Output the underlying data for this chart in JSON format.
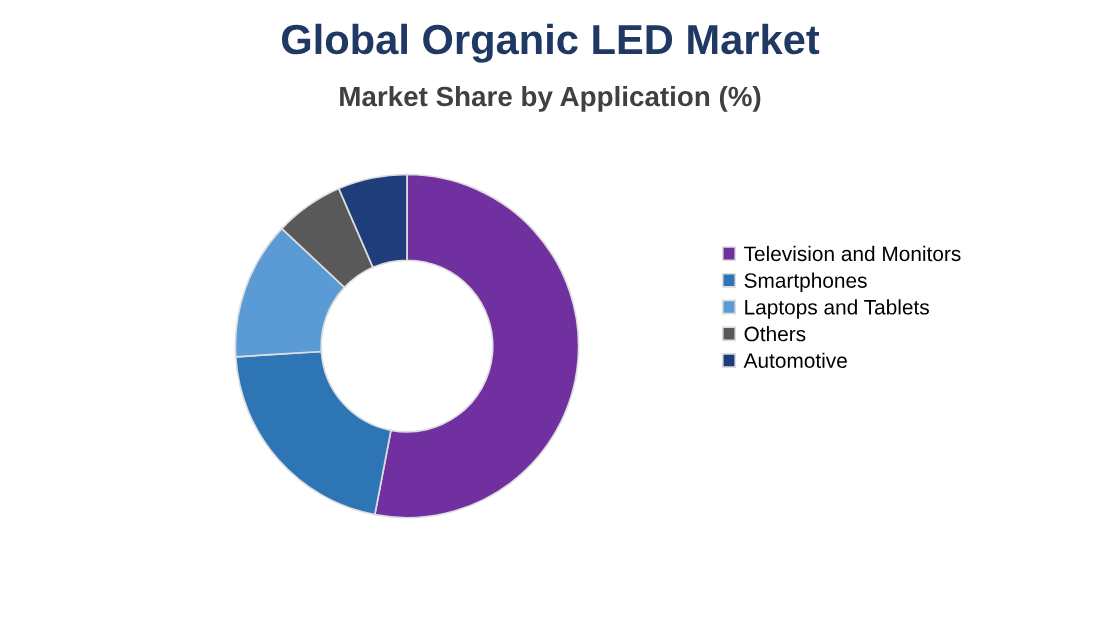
{
  "chart_data": {
    "type": "donut",
    "title": "Global Organic LED Market",
    "subtitle": "Market Share by Application (%)",
    "categories": [
      "Television and Monitors",
      "Smartphones",
      "Laptops and Tablets",
      "Others",
      "Automotive"
    ],
    "values": [
      53,
      21,
      13,
      6.5,
      6.5
    ],
    "colors": [
      "#7030a0",
      "#2e75b6",
      "#5b9bd5",
      "#595959",
      "#1f3d7a"
    ],
    "legend": "right"
  }
}
